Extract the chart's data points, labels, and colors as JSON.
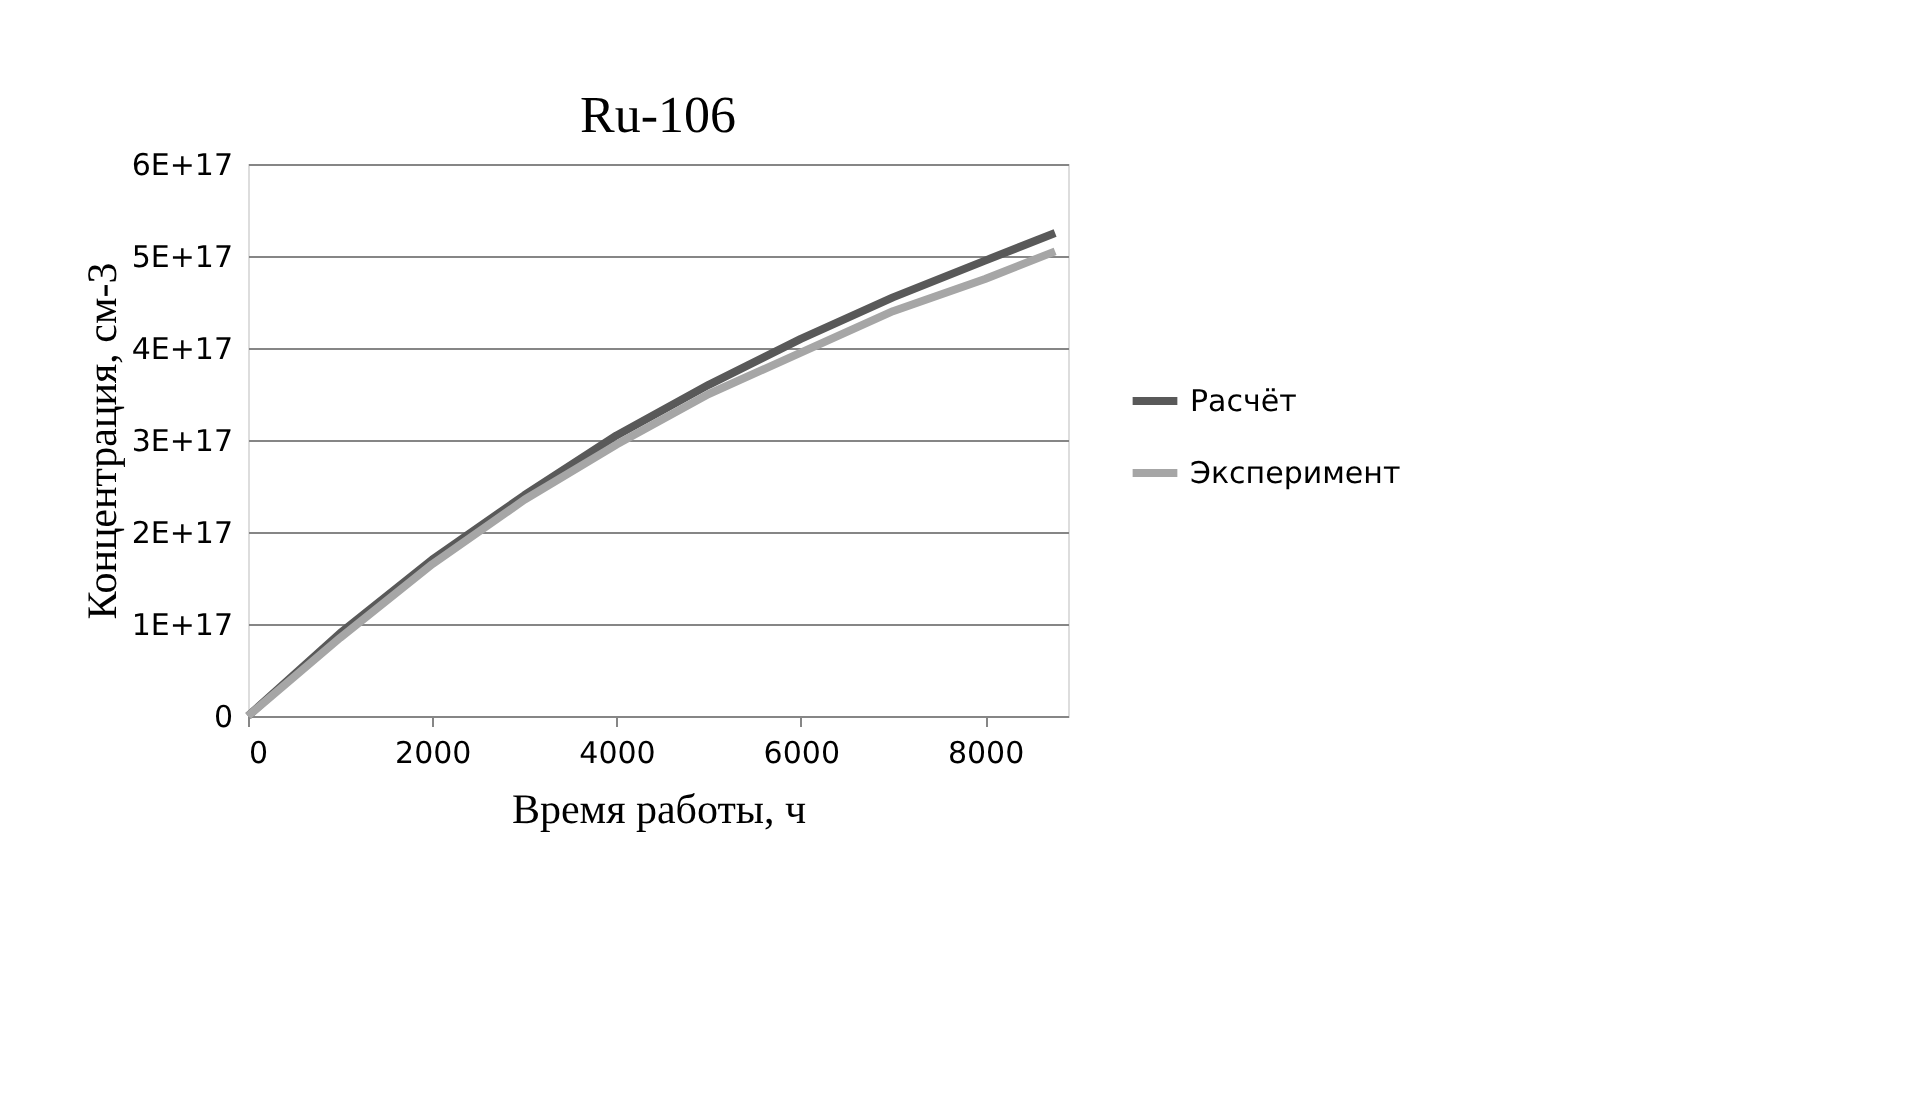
{
  "chart_data": {
    "type": "line",
    "title": "Ru-106",
    "xlabel": "Время работы, ч",
    "ylabel": "Концентрация, см-3",
    "xlim": [
      0,
      8900
    ],
    "xticks": [
      0,
      2000,
      4000,
      6000,
      8000
    ],
    "ylim": [
      0,
      6e+17
    ],
    "yticks": [
      {
        "value": 0,
        "label": "0"
      },
      {
        "value": 1e+17,
        "label": "1E+17"
      },
      {
        "value": 2e+17,
        "label": "2E+17"
      },
      {
        "value": 3e+17,
        "label": "3E+17"
      },
      {
        "value": 4e+17,
        "label": "4E+17"
      },
      {
        "value": 5e+17,
        "label": "5E+17"
      },
      {
        "value": 6e+17,
        "label": "6E+17"
      }
    ],
    "grid": "y",
    "legend": "right",
    "marker": "none",
    "line_style": "solid",
    "x": [
      0,
      1000,
      2000,
      3000,
      4000,
      5000,
      6000,
      7000,
      8000,
      8760
    ],
    "series": [
      {
        "name": "Расчёт",
        "color": "#595959",
        "values": [
          0,
          9e+16,
          1.7e+17,
          2.4e+17,
          3.05e+17,
          3.6e+17,
          4.1e+17,
          4.55e+17,
          4.95e+17,
          5.25e+17
        ]
      },
      {
        "name": "Эксперимент",
        "color": "#a6a6a6",
        "values": [
          0,
          8.5e+16,
          1.65e+17,
          2.35e+17,
          2.95e+17,
          3.5e+17,
          3.95e+17,
          4.4e+17,
          4.75e+17,
          5.05e+17
        ]
      }
    ]
  }
}
